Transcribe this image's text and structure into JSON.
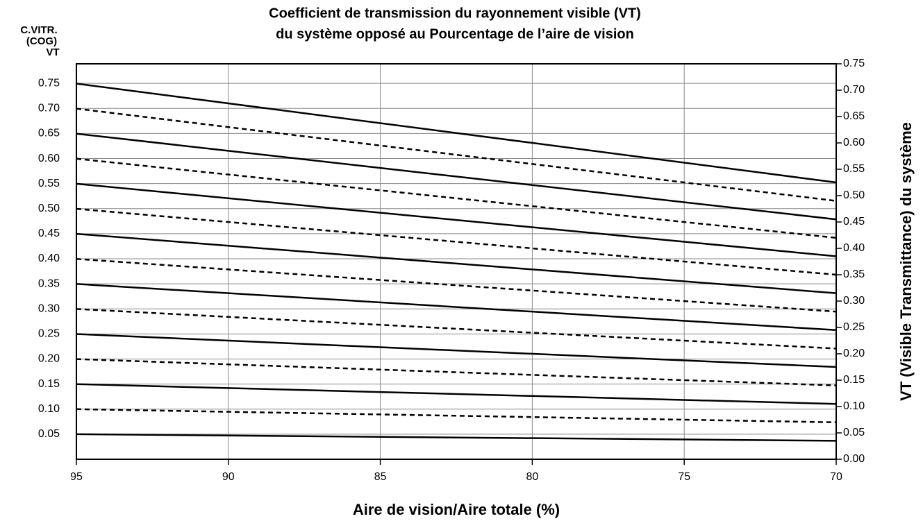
{
  "chart_data": {
    "type": "line",
    "title": [
      "Coefficient de transmission du rayonnement visible (VT)",
      "du système opposé au Pourcentage de l’aire de vision"
    ],
    "x_label": "Aire de vision/Aire totale (%)",
    "y_label": [
      "C.VITR.",
      "(COG)",
      "VT"
    ],
    "y2_label": "VT (Visible Transmittance) du système",
    "x": [
      95,
      70
    ],
    "xlim": [
      95,
      70
    ],
    "xticks": [
      95,
      90,
      85,
      80,
      75,
      70
    ],
    "ylim": [
      0,
      0.789
    ],
    "yticks": [
      0.05,
      {
        "value": 0.1,
        "label": "0.10"
      },
      0.15,
      {
        "value": 0.2,
        "label": "0.20"
      },
      0.25,
      {
        "value": 0.3,
        "label": "0.30"
      },
      0.35,
      {
        "value": 0.4,
        "label": "0.40"
      },
      0.45,
      {
        "value": 0.5,
        "label": "0.50"
      },
      0.55,
      {
        "value": 0.6,
        "label": "0.60"
      },
      0.65,
      {
        "value": 0.7,
        "label": "0.70"
      },
      0.75
    ],
    "y2lim": [
      0,
      0.75
    ],
    "y2ticks": [
      {
        "value": 0,
        "label": "0.00"
      },
      0.05,
      {
        "value": 0.1,
        "label": "0.10"
      },
      0.15,
      {
        "value": 0.2,
        "label": "0.20"
      },
      0.25,
      {
        "value": 0.3,
        "label": "0.30"
      },
      0.35,
      {
        "value": 0.4,
        "label": "0.40"
      },
      0.45,
      {
        "value": 0.5,
        "label": "0.50"
      },
      0.55,
      {
        "value": 0.6,
        "label": "0.60"
      },
      0.65,
      {
        "value": 0.7,
        "label": "0.70"
      },
      0.75
    ],
    "grid": true,
    "series": [
      {
        "color": "#000",
        "dashed": false,
        "axis": "y2",
        "values": [
          0.0475,
          0.035
        ]
      },
      {
        "color": "#000",
        "dashed": true,
        "axis": "y2",
        "values": [
          0.095,
          0.07
        ]
      },
      {
        "color": "#000",
        "dashed": false,
        "axis": "y2",
        "values": [
          0.1425,
          0.105
        ]
      },
      {
        "color": "#000",
        "dashed": true,
        "axis": "y2",
        "values": [
          0.19,
          0.14
        ]
      },
      {
        "color": "#000",
        "dashed": false,
        "axis": "y2",
        "values": [
          0.2375,
          0.175
        ]
      },
      {
        "color": "#000",
        "dashed": true,
        "axis": "y2",
        "values": [
          0.285,
          0.21
        ]
      },
      {
        "color": "#000",
        "dashed": false,
        "axis": "y2",
        "values": [
          0.3325,
          0.245
        ]
      },
      {
        "color": "#000",
        "dashed": true,
        "axis": "y2",
        "values": [
          0.38,
          0.28
        ]
      },
      {
        "color": "#000",
        "dashed": false,
        "axis": "y2",
        "values": [
          0.4275,
          0.315
        ]
      },
      {
        "color": "#000",
        "dashed": true,
        "axis": "y2",
        "values": [
          0.475,
          0.35
        ]
      },
      {
        "color": "#000",
        "dashed": false,
        "axis": "y2",
        "values": [
          0.5225,
          0.385
        ]
      },
      {
        "color": "#000",
        "dashed": true,
        "axis": "y2",
        "values": [
          0.57,
          0.42
        ]
      },
      {
        "color": "#000",
        "dashed": false,
        "axis": "y2",
        "values": [
          0.6175,
          0.455
        ]
      },
      {
        "color": "#000",
        "dashed": true,
        "axis": "y2",
        "values": [
          0.665,
          0.49
        ]
      },
      {
        "color": "#000",
        "dashed": false,
        "axis": "y2",
        "values": [
          0.7125,
          0.525
        ]
      }
    ]
  }
}
